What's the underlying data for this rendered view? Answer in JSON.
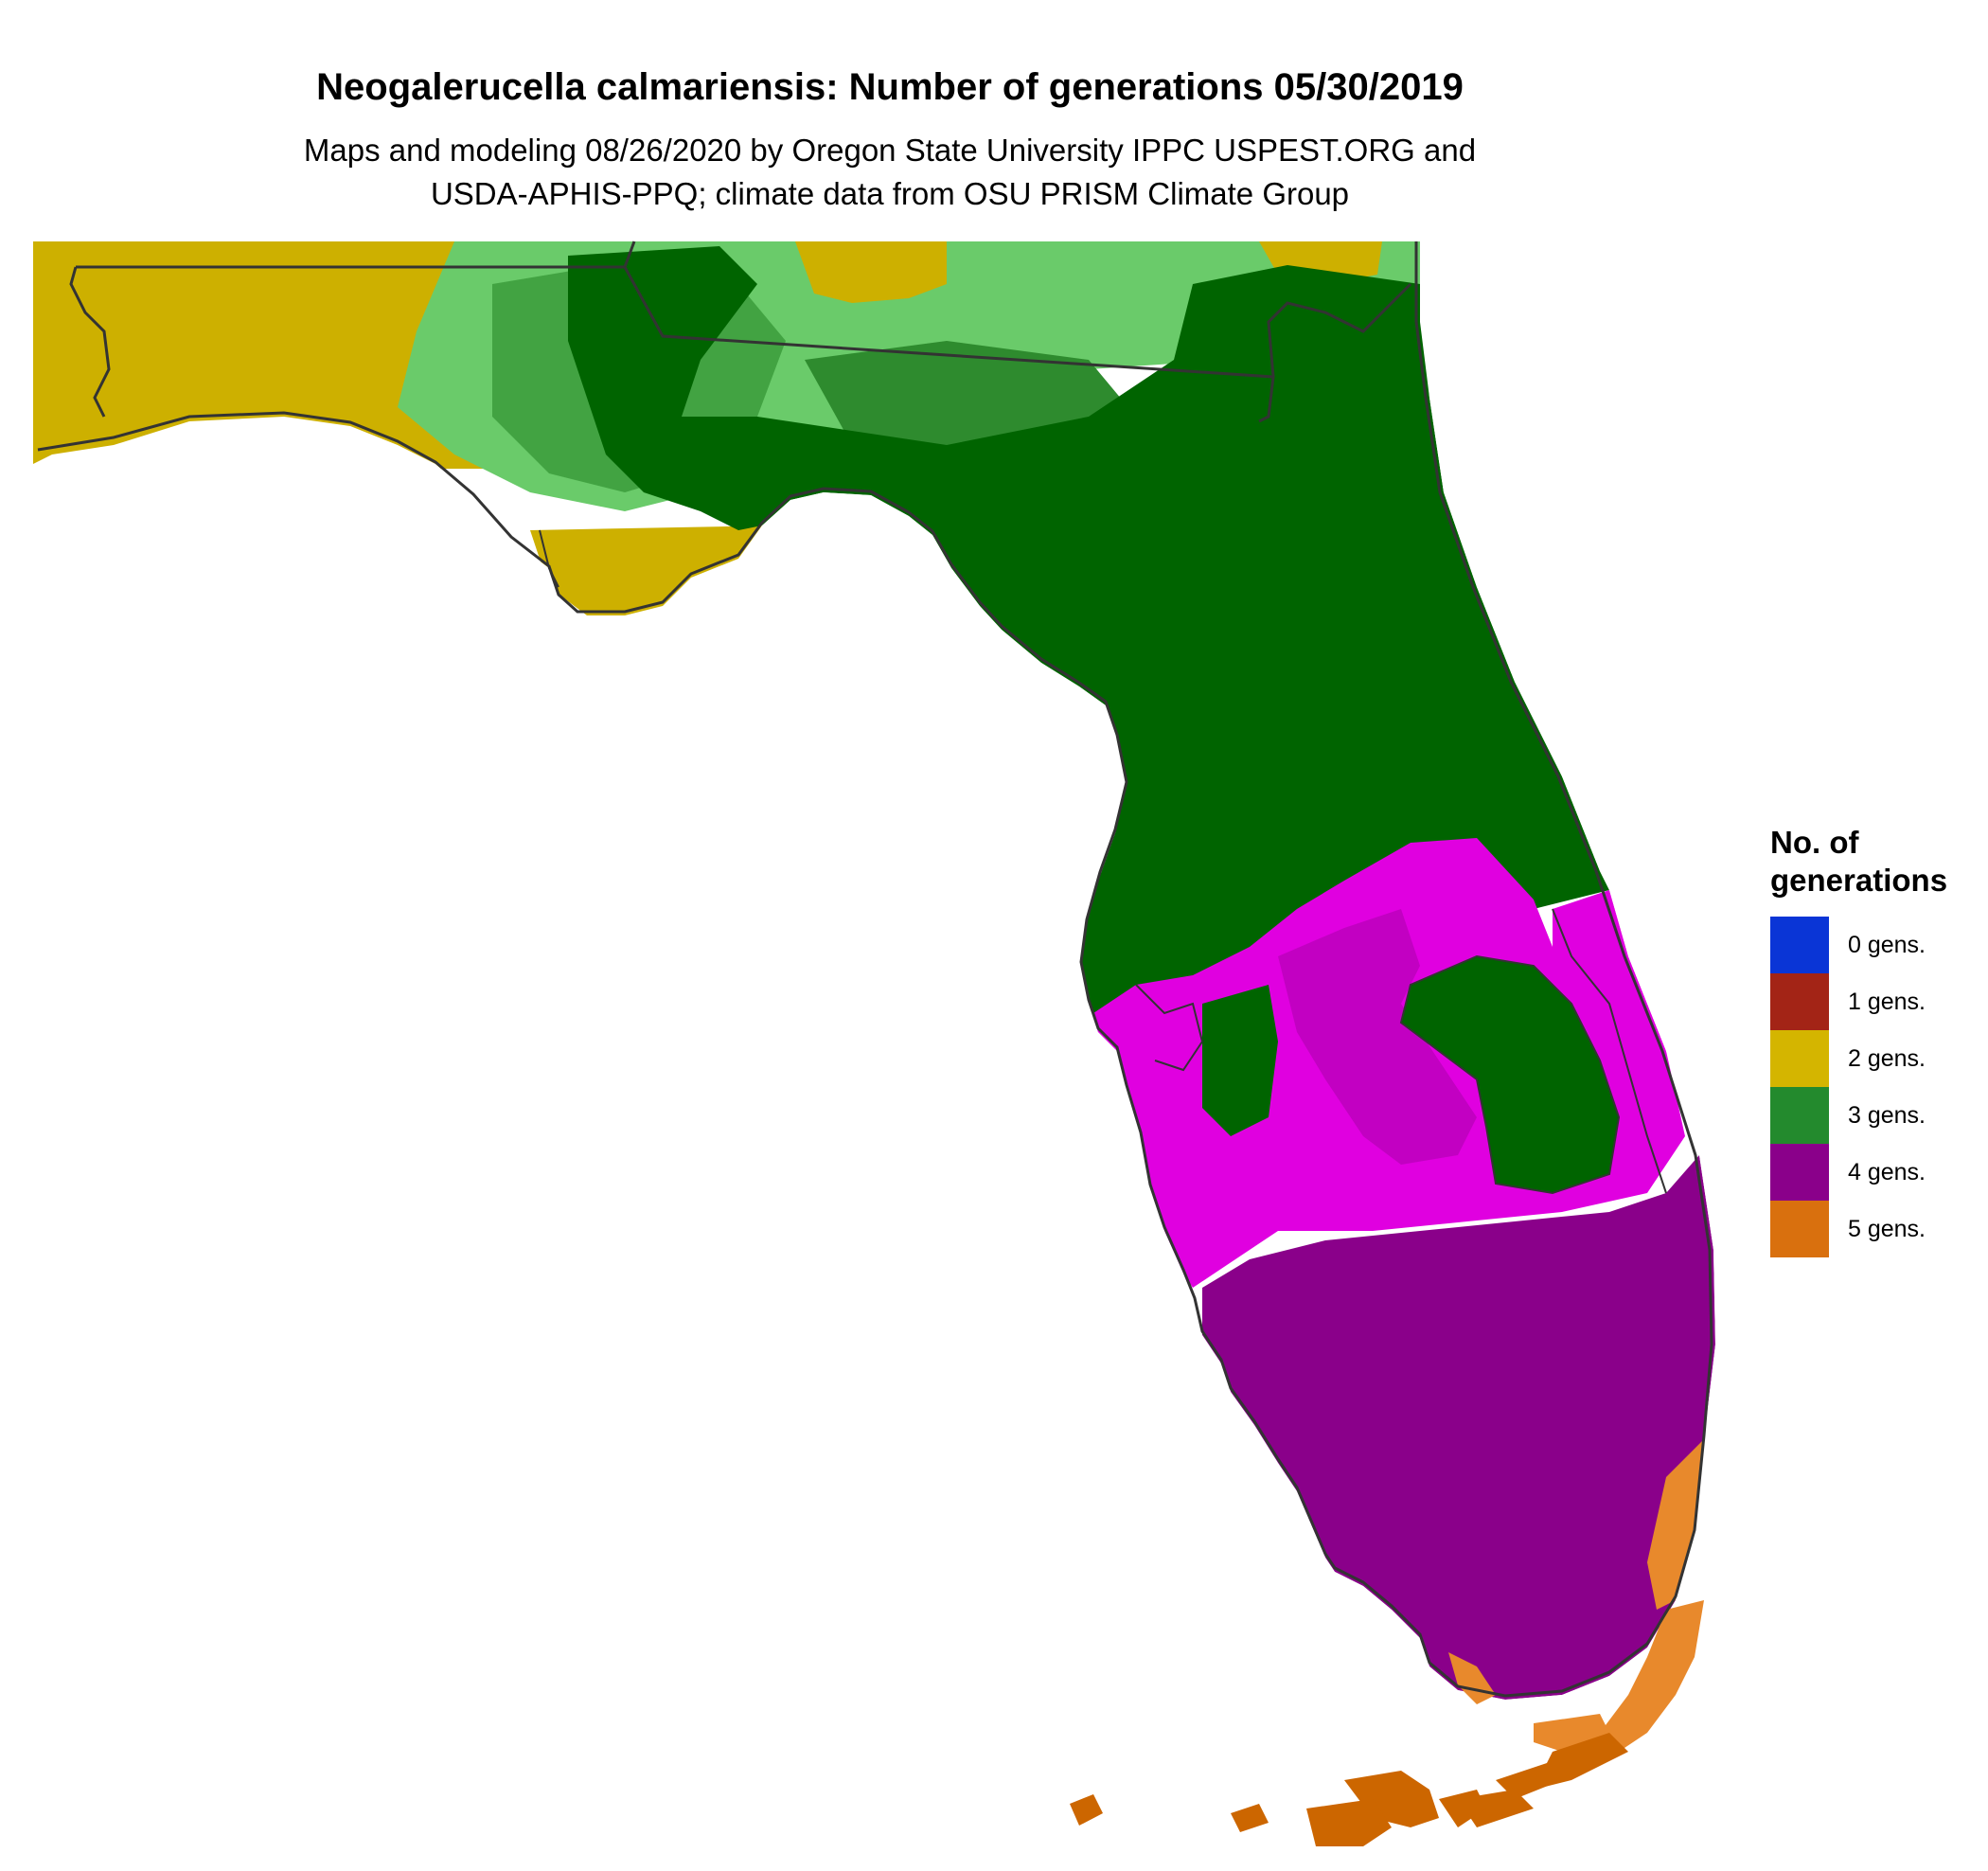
{
  "header": {
    "title": "Neogalerucella calmariensis: Number of generations 05/30/2019",
    "subtitle_line1": "Maps and modeling 08/26/2020 by Oregon State University IPPC USPEST.ORG and",
    "subtitle_line2": "USDA-APHIS-PPQ; climate data from OSU PRISM Climate Group"
  },
  "legend": {
    "title_line1": "No. of",
    "title_line2": "generations",
    "items": [
      {
        "label": "0 gens.",
        "color": "#0a35d6"
      },
      {
        "label": "1 gens.",
        "color": "#a32416"
      },
      {
        "label": "2 gens.",
        "color": "#d4b500"
      },
      {
        "label": "3 gens.",
        "color": "#238a2d"
      },
      {
        "label": "4 gens.",
        "color": "#8a008a"
      },
      {
        "label": "5 gens.",
        "color": "#d9700e"
      }
    ]
  },
  "map": {
    "region": "Florida",
    "zone_colors": {
      "gen2": "#cdb000",
      "gen3_light": "#6acb6a",
      "gen3_mid": "#42a342",
      "gen3_mid2": "#2e8b2e",
      "gen3_dark": "#006400",
      "gen4_bright": "#e000e0",
      "gen4_mid": "#c200c2",
      "gen4_dark": "#8a008a",
      "gen5_light": "#e8892c",
      "gen5_dark": "#cc6600",
      "border": "#333333"
    }
  }
}
